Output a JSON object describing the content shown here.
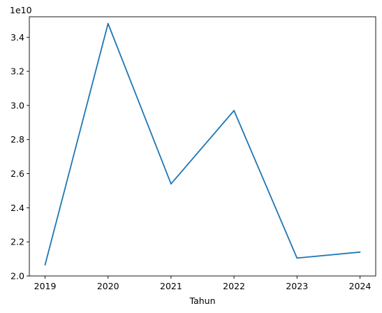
{
  "chart_data": {
    "type": "line",
    "title": "",
    "xlabel": "Tahun",
    "ylabel": "",
    "y_offset_label": "1e10",
    "x": [
      2019,
      2020,
      2021,
      2022,
      2023,
      2024
    ],
    "x_tick_labels": [
      "2019",
      "2020",
      "2021",
      "2022",
      "2023",
      "2024"
    ],
    "y_ticks": [
      2.0,
      2.2,
      2.4,
      2.6,
      2.8,
      3.0,
      3.2,
      3.4
    ],
    "y_tick_labels": [
      "2.0",
      "2.2",
      "2.4",
      "2.6",
      "2.8",
      "3.0",
      "3.2",
      "3.4"
    ],
    "y_scale_multiplier": 10000000000,
    "ylim": [
      2.0,
      3.52
    ],
    "xlim": [
      2018.75,
      2024.25
    ],
    "grid": false,
    "series": [
      {
        "values": [
          2.065,
          3.48,
          2.54,
          2.97,
          2.105,
          2.14
        ],
        "color": "#1f77b4"
      }
    ]
  }
}
